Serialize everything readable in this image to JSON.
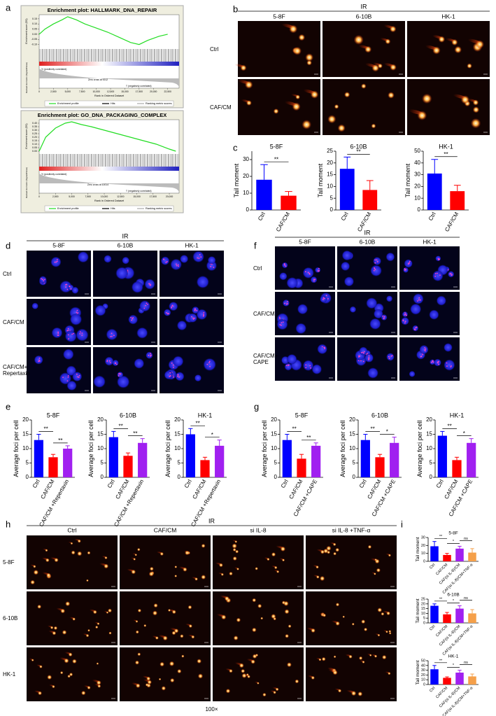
{
  "panel_labels": [
    "a",
    "b",
    "c",
    "d",
    "e",
    "f",
    "g",
    "h",
    "i"
  ],
  "image_grids": [
    {
      "header": "IR",
      "columns": [
        "5-8F",
        "6-10B",
        "HK-1"
      ],
      "rows": [
        "Ctrl",
        "CAF/CM"
      ]
    },
    {
      "header": "IR",
      "columns": [
        "5-8F",
        "6-10B",
        "HK-1"
      ],
      "rows": [
        "Ctrl",
        "CAF/CM",
        "CAF/CM+ Repertaxin"
      ]
    },
    {
      "header": "IR",
      "columns": [
        "5-8F",
        "6-10B",
        "HK-1"
      ],
      "rows": [
        "Ctrl",
        "CAF/CM",
        "CAF/CM+ CAPE"
      ]
    },
    {
      "header": "IR",
      "columns": [
        "Ctrl",
        "CAF/CM",
        "si IL-8",
        "si IL-8 +TNF-α"
      ],
      "rows": [
        "5-8F",
        "6-10B",
        "HK-1"
      ],
      "footer": "100×"
    }
  ],
  "chart_data": [
    {
      "type": "gsea",
      "title": "Enrichment plot: HALLMARK_DNA_REPAIR",
      "ylabel": "Enrichment score (ES)",
      "ylabel2": "Ranked list metric (Signal2Noise)",
      "xlabel": "Rank in Ordered Dataset",
      "x": [
        0,
        1000,
        2500,
        4000,
        5000,
        6500,
        8000,
        10000,
        12000,
        14000,
        16000,
        17500,
        19000,
        21000,
        22500
      ],
      "values": [
        0,
        0.05,
        0.1,
        0.14,
        0.17,
        0.14,
        0.1,
        0.06,
        0.02,
        -0.03,
        -0.08,
        -0.1,
        -0.06,
        -0.02,
        0
      ],
      "color": "#22dd22",
      "xlim": [
        0,
        24500
      ],
      "xticks": [
        0,
        {
          "value": 2500,
          "label": "2,500"
        },
        {
          "value": 5000,
          "label": "5,000"
        },
        {
          "value": 7500,
          "label": "7,500"
        },
        {
          "value": 10000,
          "label": "10,000"
        },
        {
          "value": 12500,
          "label": "12,500"
        },
        {
          "value": 15000,
          "label": "15,000"
        },
        {
          "value": 17500,
          "label": "17,500"
        },
        {
          "value": 20000,
          "label": "20,000"
        },
        {
          "value": 22500,
          "label": "22,500"
        }
      ],
      "ylim": [
        -0.13,
        0.19
      ],
      "yticks": [
        {
          "value": -0.1,
          "label": "-0.10"
        },
        -0.05,
        {
          "value": 0,
          "label": "0.00"
        },
        0.05,
        {
          "value": 0.1,
          "label": "0.10"
        },
        0.15
      ],
      "annotations": [
        "'h' (positively correlated)",
        "Zero cross at 9212",
        "'l' (negatively correlated)"
      ],
      "legend": [
        "Enrichment profile",
        "Hits",
        "Ranking metric scores"
      ]
    },
    {
      "type": "gsea",
      "title": "Enrichment plot: GO_DNA_PACKAGING_COMPLEX",
      "ylabel": "Enrichment score (ES)",
      "ylabel2": "Ranked list metric (Signal2Noise)",
      "xlabel": "Rank in Ordered Dataset",
      "x": [
        0,
        1000,
        2500,
        4000,
        5000,
        6500,
        8000,
        10000,
        12000,
        14000,
        16000,
        18000,
        20000,
        21000
      ],
      "values": [
        0,
        0.2,
        0.33,
        0.4,
        0.42,
        0.38,
        0.35,
        0.3,
        0.25,
        0.2,
        0.15,
        0.1,
        0.03,
        0
      ],
      "color": "#22dd22",
      "xlim": [
        0,
        21500
      ],
      "xticks": [
        0,
        {
          "value": 2500,
          "label": "2,500"
        },
        {
          "value": 5000,
          "label": "5,000"
        },
        {
          "value": 7500,
          "label": "7,500"
        },
        {
          "value": 10000,
          "label": "10,000"
        },
        {
          "value": 12500,
          "label": "12,500"
        },
        {
          "value": 15000,
          "label": "15,000"
        },
        {
          "value": 17500,
          "label": "17,500"
        },
        {
          "value": 20000,
          "label": "20,000"
        }
      ],
      "ylim": [
        -0.02,
        0.45
      ],
      "yticks": [
        {
          "value": 0,
          "label": "0.00"
        },
        0.05,
        {
          "value": 0.1,
          "label": "0.10"
        },
        0.15,
        {
          "value": 0.2,
          "label": "0.20"
        },
        0.25,
        {
          "value": 0.3,
          "label": "0.30"
        },
        0.35,
        {
          "value": 0.4,
          "label": "0.40"
        }
      ],
      "annotations": [
        "'h' (positively correlated)",
        "Zero cross at 10014",
        "'l' (negatively correlated)"
      ],
      "legend": [
        "Enrichment profile",
        "Hits",
        "Ranking metric scores"
      ]
    },
    {
      "type": "bar",
      "title": "5-8F",
      "ylabel": "Tail moment",
      "categories": [
        "Ctrl",
        "CAF/CM"
      ],
      "values": [
        18,
        8.5
      ],
      "errors": [
        9,
        2.5
      ],
      "colors": [
        "#0000ff",
        "#ff0000"
      ],
      "ylim": [
        0,
        35
      ],
      "yticks": [
        0,
        10,
        20,
        30
      ],
      "annotations": [
        "**"
      ]
    },
    {
      "type": "bar",
      "title": "6-10B",
      "ylabel": "Tail moment",
      "categories": [
        "Ctrl",
        "CAF/CM"
      ],
      "values": [
        17.5,
        8.5
      ],
      "errors": [
        5,
        4
      ],
      "colors": [
        "#0000ff",
        "#ff0000"
      ],
      "ylim": [
        0,
        25
      ],
      "yticks": [
        0,
        5,
        10,
        15,
        20,
        25
      ],
      "annotations": [
        "**"
      ]
    },
    {
      "type": "bar",
      "title": "HK-1",
      "ylabel": "Tail moment",
      "categories": [
        "Ctrl",
        "CAF/CM"
      ],
      "values": [
        31,
        16
      ],
      "errors": [
        12,
        5
      ],
      "colors": [
        "#0000ff",
        "#ff0000"
      ],
      "ylim": [
        0,
        50
      ],
      "yticks": [
        0,
        10,
        20,
        30,
        40,
        50
      ],
      "annotations": [
        "**"
      ]
    },
    {
      "type": "bar",
      "title": "5-8F",
      "ylabel": "Average foci per cell",
      "categories": [
        "Ctrl",
        "CAF/CM",
        "CAF/CM +Repertaxin"
      ],
      "values": [
        13,
        7,
        10
      ],
      "errors": [
        2,
        1,
        1
      ],
      "colors": [
        "#0000ff",
        "#ff0000",
        "#a020f0"
      ],
      "ylim": [
        0,
        20
      ],
      "yticks": [
        0,
        5,
        10,
        15,
        20
      ],
      "annotations": [
        "**",
        "**"
      ]
    },
    {
      "type": "bar",
      "title": "6-10B",
      "ylabel": "Average foci per cell",
      "categories": [
        "Ctrl",
        "CAF/CM",
        "CAF/CM +Repertaxin"
      ],
      "values": [
        14,
        7.5,
        12
      ],
      "errors": [
        2,
        1,
        1.5
      ],
      "colors": [
        "#0000ff",
        "#ff0000",
        "#a020f0"
      ],
      "ylim": [
        0,
        20
      ],
      "yticks": [
        0,
        5,
        10,
        15,
        20
      ],
      "annotations": [
        "**",
        "**"
      ]
    },
    {
      "type": "bar",
      "title": "HK-1",
      "ylabel": "Average foci per cell",
      "categories": [
        "Ctrl",
        "CAF/CM",
        "CAF/CM +Repertaxin"
      ],
      "values": [
        15,
        6,
        11
      ],
      "errors": [
        2,
        1,
        2
      ],
      "colors": [
        "#0000ff",
        "#ff0000",
        "#a020f0"
      ],
      "ylim": [
        0,
        20
      ],
      "yticks": [
        0,
        5,
        10,
        15,
        20
      ],
      "annotations": [
        "**",
        "*"
      ]
    },
    {
      "type": "bar",
      "title": "5-8F",
      "ylabel": "Average foci per cell",
      "categories": [
        "Ctrl",
        "CAF/CM",
        "CAF/CM +CAPE"
      ],
      "values": [
        13,
        6.5,
        11
      ],
      "errors": [
        2,
        1.5,
        1
      ],
      "colors": [
        "#0000ff",
        "#ff0000",
        "#a020f0"
      ],
      "ylim": [
        0,
        20
      ],
      "yticks": [
        0,
        5,
        10,
        15,
        20
      ],
      "annotations": [
        "**",
        "**"
      ]
    },
    {
      "type": "bar",
      "title": "6-10B",
      "ylabel": "Average foci per cell",
      "categories": [
        "Ctrl",
        "CAF/CM",
        "CAF/CM +CAPE"
      ],
      "values": [
        13,
        7,
        12
      ],
      "errors": [
        2,
        1,
        2
      ],
      "colors": [
        "#0000ff",
        "#ff0000",
        "#a020f0"
      ],
      "ylim": [
        0,
        20
      ],
      "yticks": [
        0,
        5,
        10,
        15,
        20
      ],
      "annotations": [
        "**",
        "*"
      ]
    },
    {
      "type": "bar",
      "title": "HK-1",
      "ylabel": "Average foci per cell",
      "categories": [
        "Ctrl",
        "CAF/CM",
        "CAF/CM +CAPE"
      ],
      "values": [
        14.5,
        6,
        12
      ],
      "errors": [
        1.5,
        1,
        1.5
      ],
      "colors": [
        "#0000ff",
        "#ff0000",
        "#a020f0"
      ],
      "ylim": [
        0,
        20
      ],
      "yticks": [
        0,
        5,
        10,
        15,
        20
      ],
      "annotations": [
        "**",
        "*"
      ]
    },
    {
      "type": "bar",
      "title": "5-8F",
      "ylabel": "Tail moment",
      "categories": [
        "Ctrl",
        "CAF/CM",
        "CAF(si IL-8)/CM",
        "CAF(si IL-8)/CM+TNF-α"
      ],
      "values": [
        19,
        8,
        16,
        11
      ],
      "errors": [
        6,
        2,
        3,
        5
      ],
      "colors": [
        "#0000ff",
        "#ff0000",
        "#a020f0",
        "#f5a04a"
      ],
      "ylim": [
        0,
        30
      ],
      "yticks": [
        0,
        10,
        20,
        30
      ],
      "annotations": [
        "**",
        "*",
        "ns"
      ]
    },
    {
      "type": "bar",
      "title": "6-10B",
      "ylabel": "Tail moment",
      "categories": [
        "Ctrl",
        "CAF/CM",
        "CAF(si IL-8)/CM",
        "CAF(si IL-8)/CM+TNF-α"
      ],
      "values": [
        18,
        9,
        15,
        10
      ],
      "errors": [
        2,
        2,
        3,
        4
      ],
      "colors": [
        "#0000ff",
        "#ff0000",
        "#a020f0",
        "#f5a04a"
      ],
      "ylim": [
        0,
        25
      ],
      "yticks": [
        0,
        5,
        10,
        15,
        20,
        25
      ],
      "annotations": [
        "**",
        "*",
        "ns"
      ]
    },
    {
      "type": "bar",
      "title": "HK-1",
      "ylabel": "Tail moment",
      "categories": [
        "Ctrl",
        "CAF/CM",
        "CAF(si IL-8)/CM",
        "CAF(si IL-8)/CM+TNF-α"
      ],
      "values": [
        32,
        14,
        25,
        17
      ],
      "errors": [
        8,
        2,
        5,
        5
      ],
      "colors": [
        "#0000ff",
        "#ff0000",
        "#a020f0",
        "#f5a04a"
      ],
      "ylim": [
        0,
        50
      ],
      "yticks": [
        0,
        10,
        20,
        30,
        40,
        50
      ],
      "annotations": [
        "**",
        "*",
        "ns"
      ]
    }
  ]
}
